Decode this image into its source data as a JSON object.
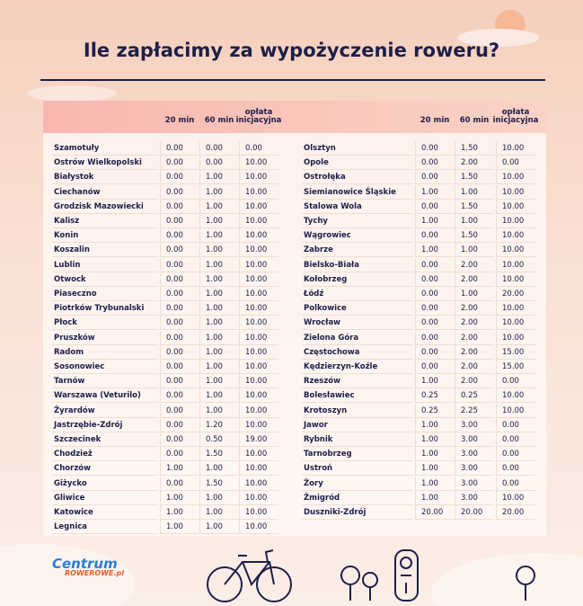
{
  "title": "Ile zapłacimy za wypożyczenie roweru?",
  "tables": [
    {
      "columns": [
        "20 min",
        "60 min",
        "opłata inicjacyjna"
      ],
      "rows": [
        [
          "Szamotuły",
          "0.00",
          "0.00",
          "0.00"
        ],
        [
          "Ostrów Wielkopolski",
          "0.00",
          "0.00",
          "10.00"
        ],
        [
          "Białystok",
          "0.00",
          "1.00",
          "10.00"
        ],
        [
          "Ciechanów",
          "0.00",
          "1.00",
          "10.00"
        ],
        [
          "Grodzisk Mazowiecki",
          "0.00",
          "1.00",
          "10.00"
        ],
        [
          "Kalisz",
          "0.00",
          "1.00",
          "10.00"
        ],
        [
          "Konin",
          "0.00",
          "1.00",
          "10.00"
        ],
        [
          "Koszalin",
          "0.00",
          "1.00",
          "10.00"
        ],
        [
          "Lublin",
          "0.00",
          "1.00",
          "10.00"
        ],
        [
          "Otwock",
          "0.00",
          "1.00",
          "10.00"
        ],
        [
          "Piaseczno",
          "0.00",
          "1.00",
          "10.00"
        ],
        [
          "Piotrków Trybunalski",
          "0.00",
          "1.00",
          "10.00"
        ],
        [
          "Płock",
          "0.00",
          "1.00",
          "10.00"
        ],
        [
          "Pruszków",
          "0.00",
          "1.00",
          "10.00"
        ],
        [
          "Radom",
          "0.00",
          "1.00",
          "10.00"
        ],
        [
          "Sosonowiec",
          "0.00",
          "1.00",
          "10.00"
        ],
        [
          "Tarnów",
          "0.00",
          "1.00",
          "10.00"
        ],
        [
          "Warszawa (Veturilo)",
          "0.00",
          "1.00",
          "10.00"
        ],
        [
          "Żyrardów",
          "0.00",
          "1.00",
          "10.00"
        ],
        [
          "Jastrzębie-Zdrój",
          "0.00",
          "1.20",
          "10.00"
        ],
        [
          "Szczecinek",
          "0.00",
          "0.50",
          "19.00"
        ],
        [
          "Chodzież",
          "0.00",
          "1.50",
          "10.00"
        ],
        [
          "Chorzów",
          "1.00",
          "1.00",
          "10.00"
        ],
        [
          "Giżycko",
          "0.00",
          "1.50",
          "10.00"
        ],
        [
          "Gliwice",
          "1.00",
          "1.00",
          "10.00"
        ],
        [
          "Katowice",
          "1.00",
          "1.00",
          "10.00"
        ],
        [
          "Legnica",
          "1.00",
          "1.00",
          "10.00"
        ]
      ]
    },
    {
      "columns": [
        "20 min",
        "60 min",
        "opłata inicjacyjna"
      ],
      "rows": [
        [
          "Olsztyn",
          "0.00",
          "1.50",
          "10.00"
        ],
        [
          "Opole",
          "0.00",
          "2.00",
          "0.00"
        ],
        [
          "Ostrołęka",
          "0.00",
          "1.50",
          "10.00"
        ],
        [
          "Siemianowice Śląskie",
          "1.00",
          "1.00",
          "10.00"
        ],
        [
          "Stalowa Wola",
          "0.00",
          "1.50",
          "10.00"
        ],
        [
          "Tychy",
          "1.00",
          "1.00",
          "10.00"
        ],
        [
          "Wągrowiec",
          "0.00",
          "1.50",
          "10.00"
        ],
        [
          "Zabrze",
          "1.00",
          "1.00",
          "10.00"
        ],
        [
          "Bielsko-Biała",
          "0.00",
          "2.00",
          "10.00"
        ],
        [
          "Kołobrzeg",
          "0.00",
          "2.00",
          "10.00"
        ],
        [
          "Łódź",
          "0.00",
          "1.00",
          "20.00"
        ],
        [
          "Polkowice",
          "0.00",
          "2.00",
          "10.00"
        ],
        [
          "Wrocław",
          "0.00",
          "2.00",
          "10.00"
        ],
        [
          "Zielona Góra",
          "0.00",
          "2.00",
          "10.00"
        ],
        [
          "Częstochowa",
          "0.00",
          "2.00",
          "15.00"
        ],
        [
          "Kędzierzyn-Koźle",
          "0.00",
          "2.00",
          "15.00"
        ],
        [
          "Rzeszów",
          "1.00",
          "2.00",
          "0.00"
        ],
        [
          "Bolesławiec",
          "0.25",
          "0.25",
          "10.00"
        ],
        [
          "Krotoszyn",
          "0.25",
          "2.25",
          "10.00"
        ],
        [
          "Jawor",
          "1.00",
          "3.00",
          "0.00"
        ],
        [
          "Rybnik",
          "1.00",
          "3.00",
          "0.00"
        ],
        [
          "Tarnobrzeg",
          "1.00",
          "3.00",
          "0.00"
        ],
        [
          "Ustroń",
          "1.00",
          "3.00",
          "0.00"
        ],
        [
          "Żory",
          "1.00",
          "3.00",
          "0.00"
        ],
        [
          "Żmigród",
          "1.00",
          "3.00",
          "10.00"
        ],
        [
          "Duszniki-Zdrój",
          "20.00",
          "20.00",
          "20.00"
        ]
      ]
    }
  ],
  "logo": {
    "name": "Centrum",
    "domain": "ROWEROWE.pl"
  }
}
